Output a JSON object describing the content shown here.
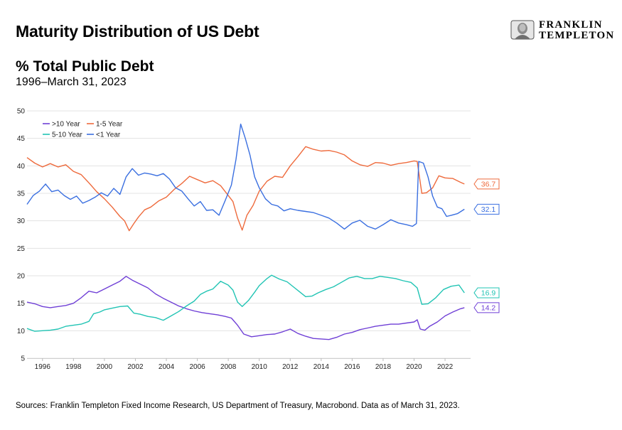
{
  "header": {
    "title": "Maturity Distribution of US Debt",
    "subtitle": "% Total Public Debt",
    "period": "1996–March 31, 2023"
  },
  "logo": {
    "line1": "FRANKLIN",
    "line2": "TEMPLETON"
  },
  "footer": {
    "source": "Sources: Franklin Templeton Fixed Income Research, US Department of Treasury, Macrobond. Data as of March 31, 2023."
  },
  "chart_data": {
    "type": "line",
    "xlim": [
      1995.0,
      2023.65
    ],
    "ylim": [
      5,
      50
    ],
    "yticks": [
      5,
      10,
      15,
      20,
      25,
      30,
      35,
      40,
      45,
      50
    ],
    "xticks": [
      1996,
      1998,
      2000,
      2002,
      2004,
      2006,
      2008,
      2010,
      2012,
      2014,
      2016,
      2018,
      2020,
      2022
    ],
    "grid": true,
    "legend_position": "top-left",
    "series": [
      {
        "name": ">10 Year",
        "color": "#6f3fd6",
        "end_label": "14.2",
        "points": [
          [
            1995.0,
            15.2
          ],
          [
            1995.5,
            14.9
          ],
          [
            1996.0,
            14.4
          ],
          [
            1996.5,
            14.2
          ],
          [
            1997.0,
            14.4
          ],
          [
            1997.5,
            14.6
          ],
          [
            1998.0,
            15.0
          ],
          [
            1998.5,
            16.0
          ],
          [
            1999.0,
            17.2
          ],
          [
            1999.5,
            16.9
          ],
          [
            2000.0,
            17.6
          ],
          [
            2000.5,
            18.3
          ],
          [
            2001.0,
            19.0
          ],
          [
            2001.4,
            19.9
          ],
          [
            2001.8,
            19.2
          ],
          [
            2002.3,
            18.5
          ],
          [
            2002.8,
            17.8
          ],
          [
            2003.3,
            16.7
          ],
          [
            2003.8,
            15.9
          ],
          [
            2004.3,
            15.2
          ],
          [
            2004.8,
            14.5
          ],
          [
            2005.3,
            14.0
          ],
          [
            2005.8,
            13.6
          ],
          [
            2006.3,
            13.3
          ],
          [
            2006.8,
            13.1
          ],
          [
            2007.3,
            12.9
          ],
          [
            2007.8,
            12.6
          ],
          [
            2008.2,
            12.3
          ],
          [
            2008.6,
            11.0
          ],
          [
            2009.0,
            9.4
          ],
          [
            2009.5,
            8.9
          ],
          [
            2010.0,
            9.1
          ],
          [
            2010.5,
            9.3
          ],
          [
            2011.0,
            9.4
          ],
          [
            2011.5,
            9.8
          ],
          [
            2012.0,
            10.3
          ],
          [
            2012.5,
            9.5
          ],
          [
            2013.0,
            9.0
          ],
          [
            2013.5,
            8.6
          ],
          [
            2014.0,
            8.5
          ],
          [
            2014.5,
            8.4
          ],
          [
            2015.0,
            8.8
          ],
          [
            2015.5,
            9.4
          ],
          [
            2016.0,
            9.7
          ],
          [
            2016.5,
            10.2
          ],
          [
            2017.0,
            10.5
          ],
          [
            2017.5,
            10.8
          ],
          [
            2018.0,
            11.0
          ],
          [
            2018.5,
            11.2
          ],
          [
            2019.0,
            11.2
          ],
          [
            2019.5,
            11.4
          ],
          [
            2020.0,
            11.6
          ],
          [
            2020.2,
            12.0
          ],
          [
            2020.4,
            10.3
          ],
          [
            2020.7,
            10.1
          ],
          [
            2021.0,
            10.8
          ],
          [
            2021.5,
            11.6
          ],
          [
            2022.0,
            12.7
          ],
          [
            2022.5,
            13.4
          ],
          [
            2023.0,
            14.0
          ],
          [
            2023.25,
            14.2
          ]
        ]
      },
      {
        "name": "1-5 Year",
        "color": "#ee6a3c",
        "end_label": "36.7",
        "points": [
          [
            1995.0,
            41.5
          ],
          [
            1995.5,
            40.5
          ],
          [
            1996.0,
            39.8
          ],
          [
            1996.5,
            40.4
          ],
          [
            1997.0,
            39.8
          ],
          [
            1997.5,
            40.2
          ],
          [
            1998.0,
            39.0
          ],
          [
            1998.5,
            38.4
          ],
          [
            1999.0,
            36.9
          ],
          [
            1999.5,
            35.3
          ],
          [
            2000.0,
            34.0
          ],
          [
            2000.5,
            32.5
          ],
          [
            2001.0,
            30.8
          ],
          [
            2001.3,
            30.0
          ],
          [
            2001.6,
            28.2
          ],
          [
            2001.9,
            29.5
          ],
          [
            2002.2,
            30.7
          ],
          [
            2002.6,
            32.0
          ],
          [
            2003.0,
            32.5
          ],
          [
            2003.5,
            33.6
          ],
          [
            2004.0,
            34.3
          ],
          [
            2004.5,
            35.7
          ],
          [
            2005.0,
            36.8
          ],
          [
            2005.5,
            38.1
          ],
          [
            2006.0,
            37.5
          ],
          [
            2006.5,
            36.9
          ],
          [
            2007.0,
            37.3
          ],
          [
            2007.5,
            36.4
          ],
          [
            2008.0,
            34.6
          ],
          [
            2008.3,
            33.5
          ],
          [
            2008.6,
            30.5
          ],
          [
            2008.9,
            28.3
          ],
          [
            2009.2,
            31.0
          ],
          [
            2009.6,
            32.8
          ],
          [
            2010.0,
            35.4
          ],
          [
            2010.5,
            37.2
          ],
          [
            2011.0,
            38.1
          ],
          [
            2011.5,
            37.9
          ],
          [
            2012.0,
            40.0
          ],
          [
            2012.5,
            41.7
          ],
          [
            2013.0,
            43.5
          ],
          [
            2013.5,
            43.0
          ],
          [
            2014.0,
            42.7
          ],
          [
            2014.5,
            42.8
          ],
          [
            2015.0,
            42.5
          ],
          [
            2015.5,
            42.0
          ],
          [
            2016.0,
            40.9
          ],
          [
            2016.5,
            40.2
          ],
          [
            2017.0,
            39.9
          ],
          [
            2017.5,
            40.6
          ],
          [
            2018.0,
            40.5
          ],
          [
            2018.5,
            40.1
          ],
          [
            2019.0,
            40.4
          ],
          [
            2019.5,
            40.6
          ],
          [
            2020.0,
            40.9
          ],
          [
            2020.2,
            40.8
          ],
          [
            2020.5,
            35.0
          ],
          [
            2020.8,
            35.1
          ],
          [
            2021.2,
            36.0
          ],
          [
            2021.6,
            38.2
          ],
          [
            2022.0,
            37.8
          ],
          [
            2022.5,
            37.7
          ],
          [
            2023.0,
            37.0
          ],
          [
            2023.25,
            36.7
          ]
        ]
      },
      {
        "name": "5-10 Year",
        "color": "#21c4b4",
        "end_label": "16.9",
        "points": [
          [
            1995.0,
            10.4
          ],
          [
            1995.5,
            9.9
          ],
          [
            1996.0,
            10.0
          ],
          [
            1996.5,
            10.1
          ],
          [
            1997.0,
            10.3
          ],
          [
            1997.5,
            10.8
          ],
          [
            1998.0,
            11.0
          ],
          [
            1998.5,
            11.2
          ],
          [
            1999.0,
            11.7
          ],
          [
            1999.3,
            13.1
          ],
          [
            1999.7,
            13.4
          ],
          [
            2000.0,
            13.8
          ],
          [
            2000.5,
            14.1
          ],
          [
            2001.0,
            14.4
          ],
          [
            2001.5,
            14.5
          ],
          [
            2001.9,
            13.2
          ],
          [
            2002.3,
            13.0
          ],
          [
            2002.8,
            12.6
          ],
          [
            2003.3,
            12.4
          ],
          [
            2003.8,
            11.9
          ],
          [
            2004.3,
            12.7
          ],
          [
            2004.8,
            13.5
          ],
          [
            2005.3,
            14.5
          ],
          [
            2005.8,
            15.4
          ],
          [
            2006.2,
            16.6
          ],
          [
            2006.6,
            17.2
          ],
          [
            2007.0,
            17.6
          ],
          [
            2007.5,
            19.0
          ],
          [
            2008.0,
            18.3
          ],
          [
            2008.3,
            17.4
          ],
          [
            2008.6,
            15.2
          ],
          [
            2008.9,
            14.4
          ],
          [
            2009.3,
            15.5
          ],
          [
            2009.7,
            17.0
          ],
          [
            2010.0,
            18.2
          ],
          [
            2010.5,
            19.5
          ],
          [
            2010.8,
            20.1
          ],
          [
            2011.3,
            19.4
          ],
          [
            2011.8,
            18.9
          ],
          [
            2012.2,
            18.0
          ],
          [
            2012.6,
            17.1
          ],
          [
            2013.0,
            16.2
          ],
          [
            2013.4,
            16.3
          ],
          [
            2013.8,
            16.9
          ],
          [
            2014.3,
            17.5
          ],
          [
            2014.8,
            18.0
          ],
          [
            2015.3,
            18.8
          ],
          [
            2015.8,
            19.6
          ],
          [
            2016.3,
            19.9
          ],
          [
            2016.8,
            19.5
          ],
          [
            2017.3,
            19.5
          ],
          [
            2017.8,
            19.9
          ],
          [
            2018.3,
            19.7
          ],
          [
            2018.8,
            19.5
          ],
          [
            2019.3,
            19.1
          ],
          [
            2019.8,
            18.8
          ],
          [
            2020.2,
            17.8
          ],
          [
            2020.5,
            14.8
          ],
          [
            2020.9,
            14.9
          ],
          [
            2021.4,
            16.0
          ],
          [
            2021.9,
            17.5
          ],
          [
            2022.4,
            18.1
          ],
          [
            2022.9,
            18.3
          ],
          [
            2023.25,
            16.9
          ]
        ]
      },
      {
        "name": "<1 Year",
        "color": "#3a6fe0",
        "end_label": "32.1",
        "points": [
          [
            1995.0,
            33.0
          ],
          [
            1995.4,
            34.6
          ],
          [
            1995.8,
            35.4
          ],
          [
            1996.2,
            36.7
          ],
          [
            1996.6,
            35.3
          ],
          [
            1997.0,
            35.6
          ],
          [
            1997.4,
            34.6
          ],
          [
            1997.8,
            33.9
          ],
          [
            1998.2,
            34.5
          ],
          [
            1998.6,
            33.2
          ],
          [
            1999.0,
            33.7
          ],
          [
            1999.4,
            34.3
          ],
          [
            1999.8,
            35.1
          ],
          [
            2000.2,
            34.5
          ],
          [
            2000.6,
            35.9
          ],
          [
            2001.0,
            34.8
          ],
          [
            2001.4,
            38.0
          ],
          [
            2001.8,
            39.5
          ],
          [
            2002.2,
            38.3
          ],
          [
            2002.6,
            38.7
          ],
          [
            2003.0,
            38.5
          ],
          [
            2003.4,
            38.2
          ],
          [
            2003.8,
            38.6
          ],
          [
            2004.2,
            37.6
          ],
          [
            2004.6,
            36.0
          ],
          [
            2005.0,
            35.4
          ],
          [
            2005.4,
            34.0
          ],
          [
            2005.8,
            32.7
          ],
          [
            2006.2,
            33.5
          ],
          [
            2006.6,
            31.9
          ],
          [
            2007.0,
            32.0
          ],
          [
            2007.4,
            31.0
          ],
          [
            2007.8,
            33.7
          ],
          [
            2008.2,
            36.5
          ],
          [
            2008.5,
            41.2
          ],
          [
            2008.8,
            47.6
          ],
          [
            2009.1,
            45.0
          ],
          [
            2009.4,
            42.0
          ],
          [
            2009.7,
            38.0
          ],
          [
            2010.0,
            36.0
          ],
          [
            2010.4,
            34.0
          ],
          [
            2010.8,
            33.0
          ],
          [
            2011.2,
            32.7
          ],
          [
            2011.6,
            31.8
          ],
          [
            2012.0,
            32.2
          ],
          [
            2012.5,
            31.9
          ],
          [
            2013.0,
            31.7
          ],
          [
            2013.5,
            31.5
          ],
          [
            2014.0,
            31.0
          ],
          [
            2014.5,
            30.5
          ],
          [
            2015.0,
            29.6
          ],
          [
            2015.5,
            28.5
          ],
          [
            2016.0,
            29.6
          ],
          [
            2016.5,
            30.1
          ],
          [
            2017.0,
            29.0
          ],
          [
            2017.5,
            28.5
          ],
          [
            2018.0,
            29.3
          ],
          [
            2018.5,
            30.2
          ],
          [
            2019.0,
            29.6
          ],
          [
            2019.5,
            29.3
          ],
          [
            2019.9,
            29.0
          ],
          [
            2020.15,
            29.5
          ],
          [
            2020.3,
            40.8
          ],
          [
            2020.6,
            40.5
          ],
          [
            2020.9,
            38.0
          ],
          [
            2021.2,
            34.5
          ],
          [
            2021.5,
            32.5
          ],
          [
            2021.8,
            32.2
          ],
          [
            2022.1,
            30.8
          ],
          [
            2022.4,
            31.0
          ],
          [
            2022.8,
            31.3
          ],
          [
            2023.25,
            32.1
          ]
        ]
      }
    ]
  }
}
